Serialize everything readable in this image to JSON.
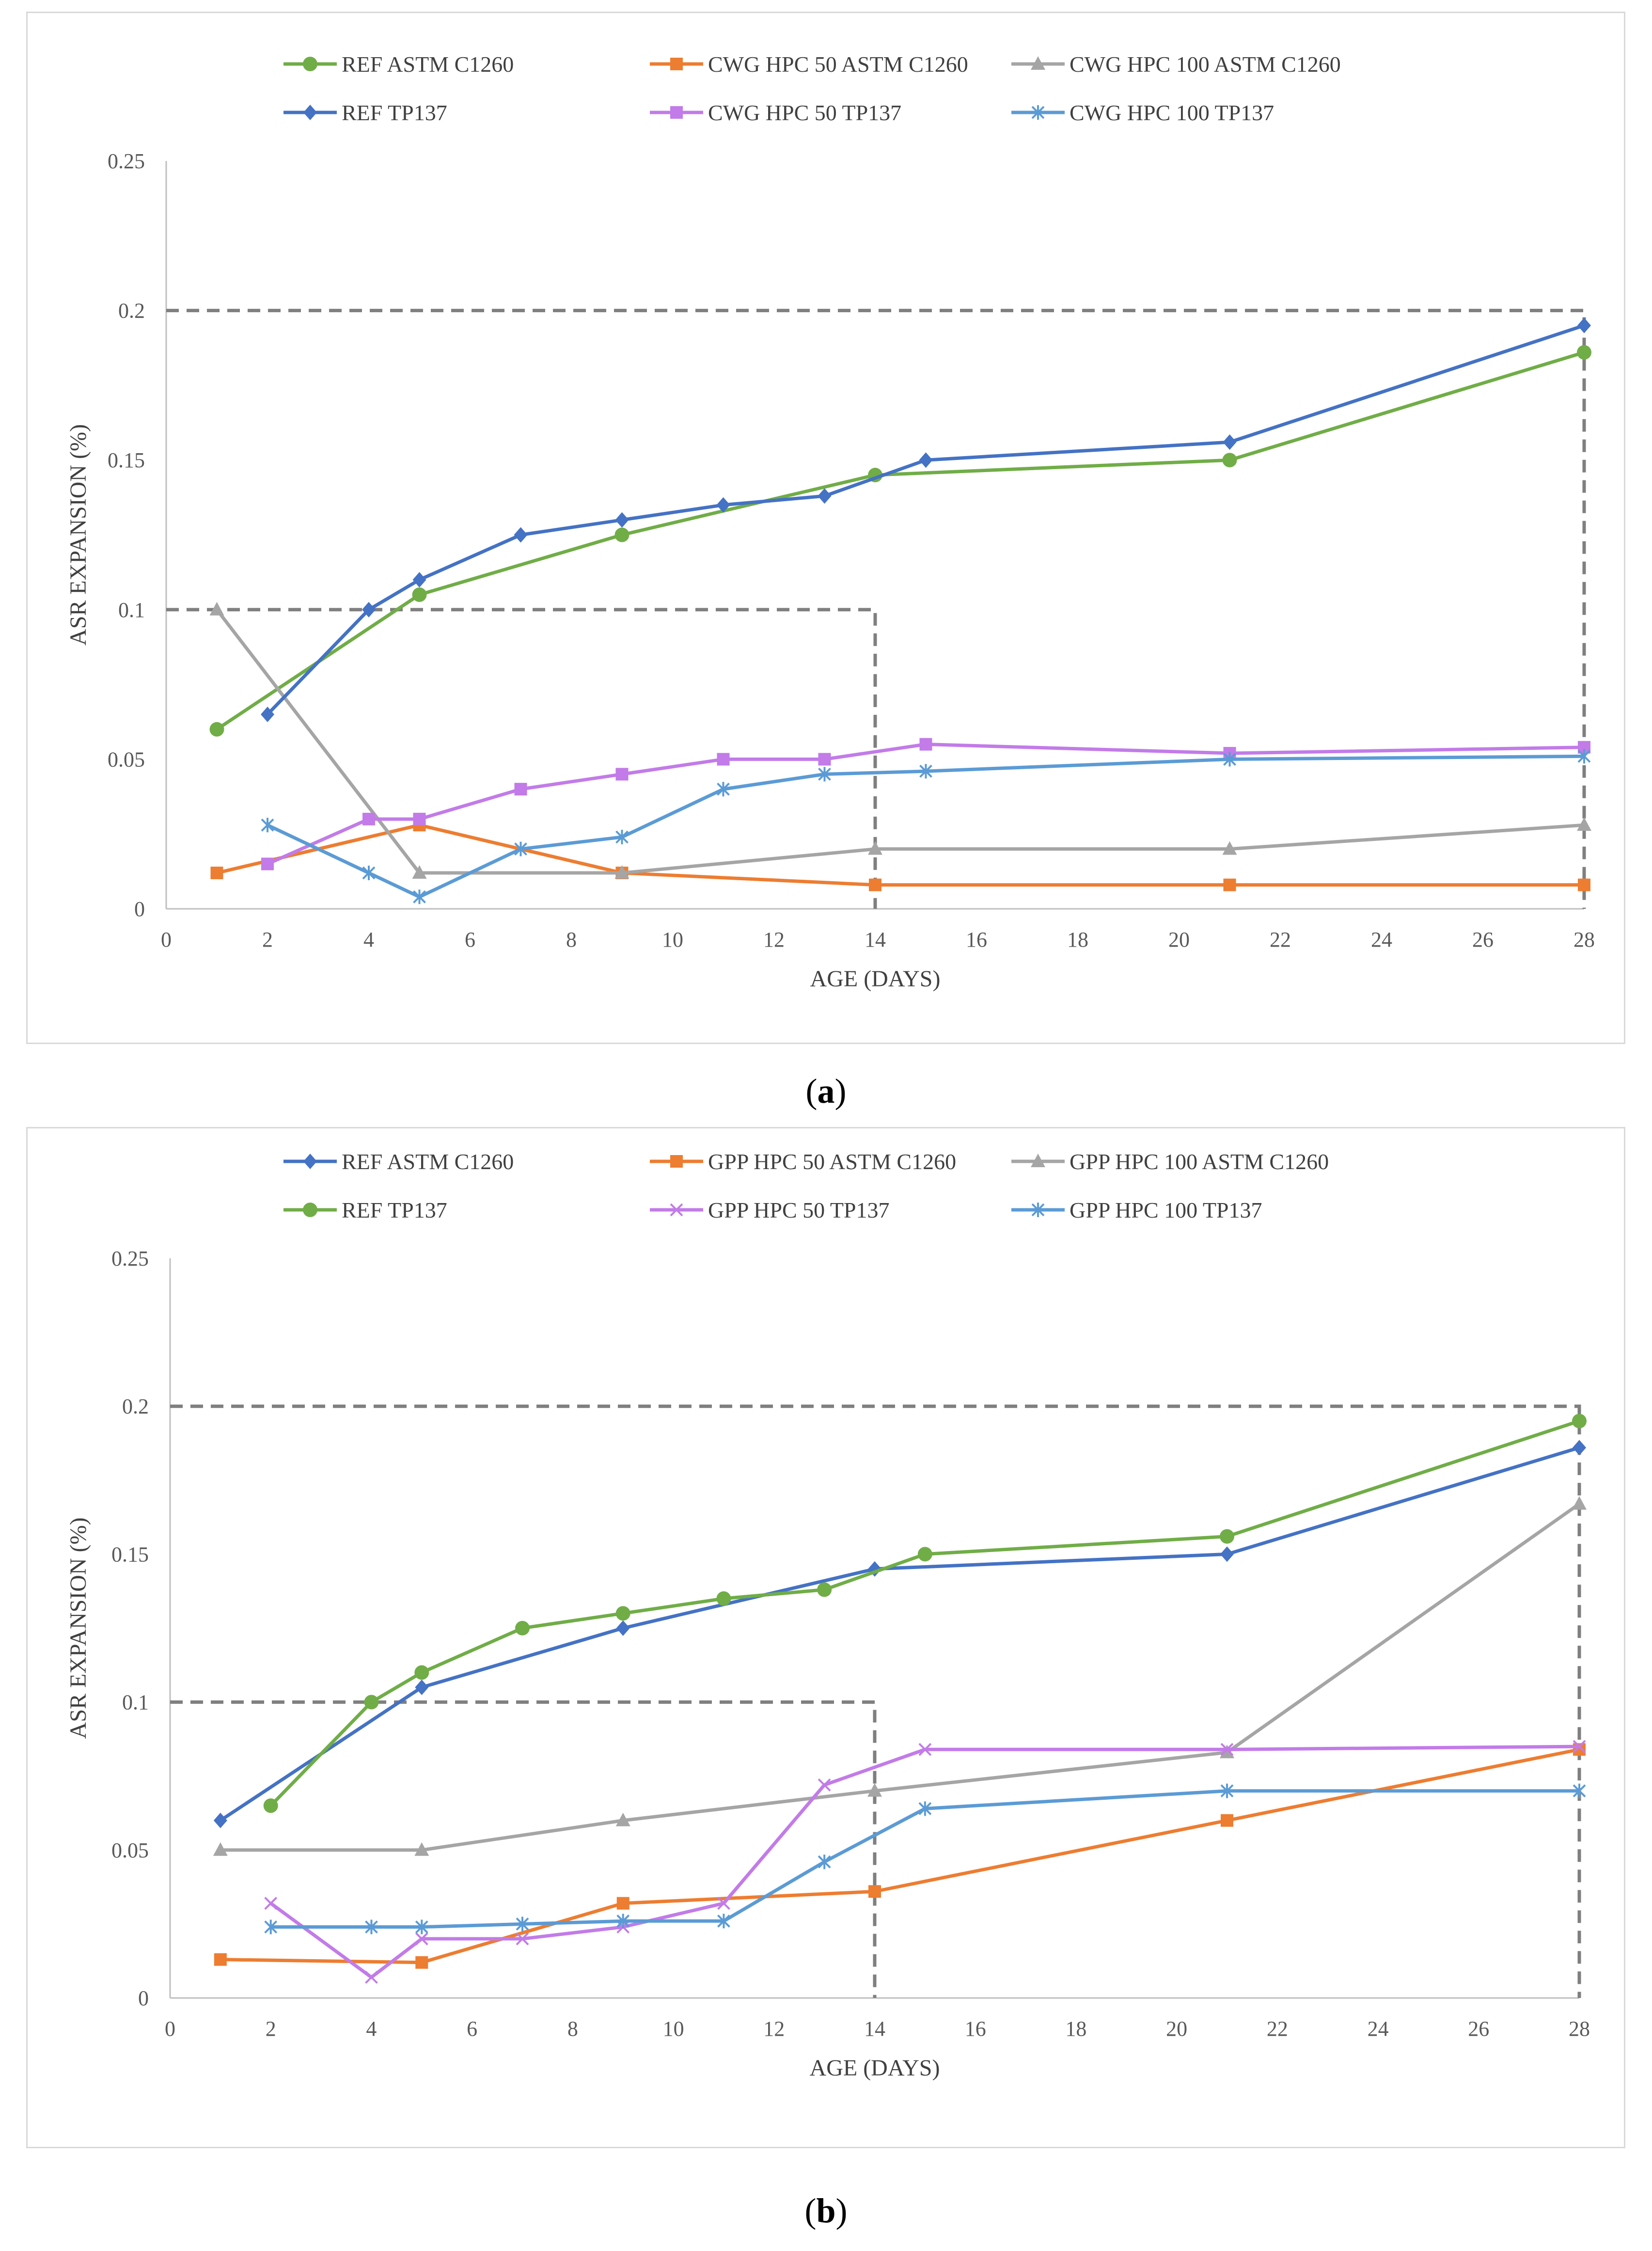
{
  "subfigures": [
    {
      "prefix": "(",
      "letter": "a",
      "suffix": ")"
    },
    {
      "prefix": "(",
      "letter": "b",
      "suffix": ")"
    }
  ],
  "colors": {
    "green": "#70ad47",
    "orange": "#ed7d31",
    "gray": "#a5a5a5",
    "blue": "#4472c4",
    "violet": "#c27be8",
    "lightblue": "#5b9bd5",
    "limit": "#7f7f7f"
  },
  "chart_data": [
    {
      "type": "line",
      "title": "",
      "xlabel": "AGE (DAYS)",
      "ylabel": "ASR EXPANSION (%)",
      "xlim": [
        0,
        28
      ],
      "ylim": [
        0,
        0.25
      ],
      "xticks": [
        "0",
        "2",
        "4",
        "6",
        "8",
        "10",
        "12",
        "14",
        "16",
        "18",
        "20",
        "22",
        "24",
        "26",
        "28"
      ],
      "yticks": [
        "0",
        "0.05",
        "0.1",
        "0.15",
        "0.2",
        "0.25"
      ],
      "legend_position": "top",
      "limit_lines": [
        {
          "points": [
            [
              0,
              0.1
            ],
            [
              14,
              0.1
            ],
            [
              14,
              0
            ]
          ]
        },
        {
          "points": [
            [
              0,
              0.2
            ],
            [
              28,
              0.2
            ],
            [
              28,
              0
            ]
          ]
        }
      ],
      "series": [
        {
          "name": "REF ASTM C1260",
          "color": "#70ad47",
          "marker": "circle",
          "x": [
            1,
            5,
            9,
            14,
            21,
            28
          ],
          "y": [
            0.06,
            0.105,
            0.125,
            0.145,
            0.15,
            0.186
          ]
        },
        {
          "name": "CWG HPC 50 ASTM C1260",
          "color": "#ed7d31",
          "marker": "square",
          "x": [
            1,
            5,
            9,
            14,
            21,
            28
          ],
          "y": [
            0.012,
            0.028,
            0.012,
            0.008,
            0.008,
            0.008
          ]
        },
        {
          "name": "CWG HPC 100 ASTM C1260",
          "color": "#a5a5a5",
          "marker": "triangle",
          "x": [
            1,
            5,
            9,
            14,
            21,
            28
          ],
          "y": [
            0.1,
            0.012,
            0.012,
            0.02,
            0.02,
            0.028
          ]
        },
        {
          "name": "REF TP137",
          "color": "#4472c4",
          "marker": "diamond",
          "x": [
            2,
            4,
            5,
            7,
            9,
            11,
            13,
            15,
            21,
            28
          ],
          "y": [
            0.065,
            0.1,
            0.11,
            0.125,
            0.13,
            0.135,
            0.138,
            0.15,
            0.156,
            0.195
          ]
        },
        {
          "name": "CWG HPC 50 TP137",
          "color": "#c27be8",
          "marker": "square",
          "x": [
            2,
            4,
            5,
            7,
            9,
            11,
            13,
            15,
            21,
            28
          ],
          "y": [
            0.015,
            0.03,
            0.03,
            0.04,
            0.045,
            0.05,
            0.05,
            0.055,
            0.052,
            0.054
          ]
        },
        {
          "name": "CWG HPC 100 TP137",
          "color": "#5b9bd5",
          "marker": "asterisk",
          "x": [
            2,
            4,
            5,
            7,
            9,
            11,
            13,
            15,
            21,
            28
          ],
          "y": [
            0.028,
            0.012,
            0.004,
            0.02,
            0.024,
            0.04,
            0.045,
            0.046,
            0.05,
            0.051
          ]
        }
      ]
    },
    {
      "type": "line",
      "title": "",
      "xlabel": "AGE (DAYS)",
      "ylabel": "ASR EXPANSION (%)",
      "xlim": [
        0,
        28
      ],
      "ylim": [
        0,
        0.25
      ],
      "xticks": [
        "0",
        "2",
        "4",
        "6",
        "8",
        "10",
        "12",
        "14",
        "16",
        "18",
        "20",
        "22",
        "24",
        "26",
        "28"
      ],
      "yticks": [
        "0",
        "0.05",
        "0.1",
        "0.15",
        "0.2",
        "0.25"
      ],
      "legend_position": "top",
      "limit_lines": [
        {
          "points": [
            [
              0,
              0.1
            ],
            [
              14,
              0.1
            ],
            [
              14,
              0
            ]
          ]
        },
        {
          "points": [
            [
              0,
              0.2
            ],
            [
              28,
              0.2
            ],
            [
              28,
              0
            ]
          ]
        }
      ],
      "series": [
        {
          "name": "REF ASTM C1260",
          "color": "#4472c4",
          "marker": "diamond",
          "x": [
            1,
            5,
            9,
            14,
            21,
            28
          ],
          "y": [
            0.06,
            0.105,
            0.125,
            0.145,
            0.15,
            0.186
          ]
        },
        {
          "name": "GPP HPC 50 ASTM C1260",
          "color": "#ed7d31",
          "marker": "square",
          "x": [
            1,
            5,
            9,
            14,
            21,
            28
          ],
          "y": [
            0.013,
            0.012,
            0.032,
            0.036,
            0.06,
            0.084
          ]
        },
        {
          "name": "GPP HPC 100 ASTM C1260",
          "color": "#a5a5a5",
          "marker": "triangle",
          "x": [
            1,
            5,
            9,
            14,
            21,
            28
          ],
          "y": [
            0.05,
            0.05,
            0.06,
            0.07,
            0.083,
            0.167
          ]
        },
        {
          "name": "REF TP137",
          "color": "#70ad47",
          "marker": "circle",
          "x": [
            2,
            4,
            5,
            7,
            9,
            11,
            13,
            15,
            21,
            28
          ],
          "y": [
            0.065,
            0.1,
            0.11,
            0.125,
            0.13,
            0.135,
            0.138,
            0.15,
            0.156,
            0.195
          ]
        },
        {
          "name": "GPP HPC 50 TP137",
          "color": "#c27be8",
          "marker": "x",
          "x": [
            2,
            4,
            5,
            7,
            9,
            11,
            13,
            15,
            21,
            28
          ],
          "y": [
            0.032,
            0.007,
            0.02,
            0.02,
            0.024,
            0.032,
            0.072,
            0.084,
            0.084,
            0.085
          ]
        },
        {
          "name": "GPP HPC 100 TP137",
          "color": "#5b9bd5",
          "marker": "asterisk",
          "x": [
            2,
            4,
            5,
            7,
            9,
            11,
            13,
            15,
            21,
            28
          ],
          "y": [
            0.024,
            0.024,
            0.024,
            0.025,
            0.026,
            0.026,
            0.046,
            0.064,
            0.07,
            0.07
          ]
        }
      ]
    }
  ]
}
